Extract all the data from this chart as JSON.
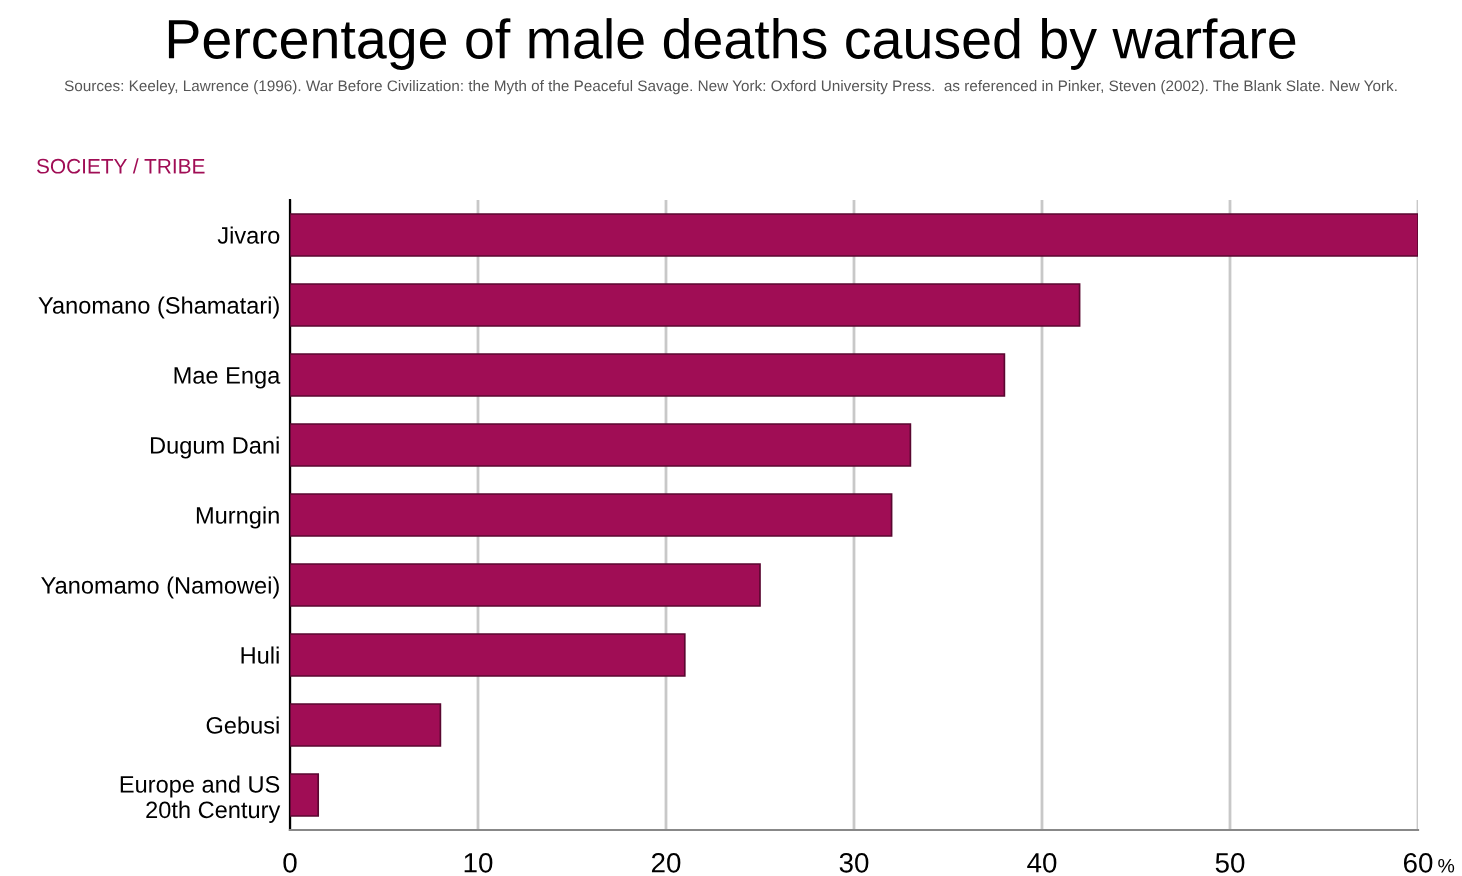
{
  "chart_data": {
    "type": "bar",
    "orientation": "horizontal",
    "title": "Percentage of male deaths caused by warfare",
    "annotations": [
      "Sources: Keeley, Lawrence (1996). War Before Civilization: the Myth of the Peaceful Savage. New York: Oxford University Press.  as referenced in Pinker, Steven (2002). The Blank Slate. New York."
    ],
    "ylabel": "SOCIETY / TRIBE",
    "xlabel": "%",
    "categories": [
      "Jivaro",
      "Yanomano (Shamatari)",
      "Mae Enga",
      "Dugum Dani",
      "Murngin",
      "Yanomamo (Namowei)",
      "Huli",
      "Gebusi",
      "Europe and US\n20th Century"
    ],
    "values": [
      60,
      42,
      38,
      33,
      32,
      25,
      21,
      8,
      1.5
    ],
    "color": "#a00d55",
    "xlim": [
      0,
      60
    ],
    "xticks": [
      0,
      10,
      20,
      30,
      40,
      50,
      60
    ],
    "grid": "x"
  }
}
